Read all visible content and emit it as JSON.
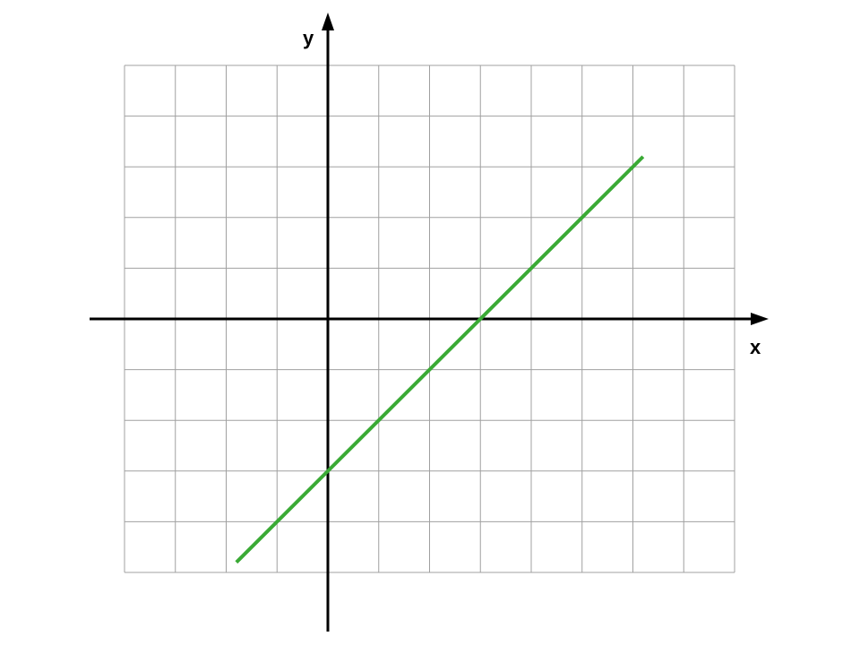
{
  "chart_data": {
    "type": "line",
    "title": "",
    "xlabel": "x",
    "ylabel": "y",
    "xlim": [
      -4,
      8
    ],
    "ylim": [
      -5,
      5
    ],
    "grid": true,
    "grid_step": 1,
    "tick_labels_shown": false,
    "series": [
      {
        "equation": "y = x - 3",
        "x": [
          -1.8,
          6.2
        ],
        "y": [
          -4.8,
          3.2
        ],
        "color": "#3aaa35"
      }
    ]
  },
  "colors": {
    "grid": "#a0a0a0",
    "axes": "#000000",
    "line": "#3aaa35"
  }
}
